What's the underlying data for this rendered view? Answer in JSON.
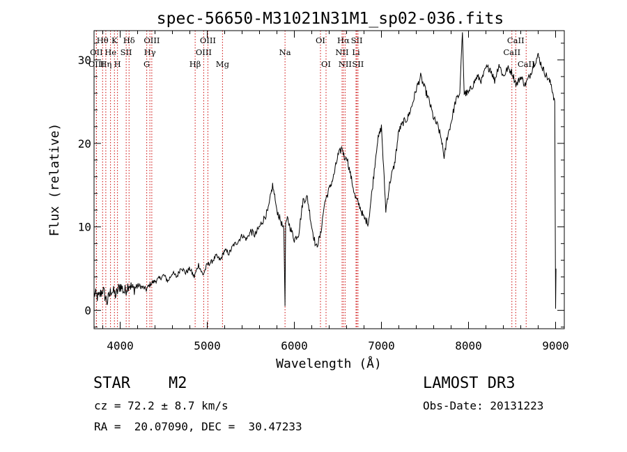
{
  "chart_data": {
    "type": "line",
    "title": "spec-56650-M31021N31M1_sp02-036.fits",
    "xlabel": "Wavelength (Å)",
    "ylabel": "Flux (relative)",
    "xlim": [
      3700,
      9100
    ],
    "ylim": [
      -2.2,
      33.5
    ],
    "xticks": [
      4000,
      5000,
      6000,
      7000,
      8000,
      9000
    ],
    "yticks": [
      0,
      10,
      20,
      30
    ],
    "line_color": "#000000",
    "marker_color": "#cc0000",
    "series": [
      {
        "name": "spectrum",
        "x": [
          3700,
          3750,
          3800,
          3850,
          3900,
          3950,
          4000,
          4050,
          4100,
          4150,
          4200,
          4250,
          4300,
          4350,
          4400,
          4450,
          4500,
          4550,
          4600,
          4650,
          4700,
          4750,
          4800,
          4850,
          4900,
          4950,
          5000,
          5050,
          5100,
          5150,
          5200,
          5250,
          5300,
          5350,
          5400,
          5450,
          5500,
          5550,
          5600,
          5650,
          5700,
          5750,
          5780,
          5800,
          5850,
          5880,
          5893,
          5900,
          5920,
          5950,
          6000,
          6050,
          6100,
          6150,
          6200,
          6250,
          6300,
          6330,
          6350,
          6400,
          6450,
          6500,
          6550,
          6580,
          6600,
          6650,
          6700,
          6750,
          6800,
          6850,
          6900,
          6950,
          7000,
          7050,
          7100,
          7150,
          7200,
          7250,
          7300,
          7350,
          7400,
          7450,
          7500,
          7550,
          7600,
          7650,
          7700,
          7720,
          7750,
          7800,
          7850,
          7900,
          7915,
          7930,
          7950,
          8000,
          8050,
          8100,
          8150,
          8200,
          8250,
          8300,
          8350,
          8400,
          8450,
          8500,
          8550,
          8600,
          8650,
          8700,
          8750,
          8800,
          8850,
          8900,
          8950,
          8990,
          9000,
          9005
        ],
        "y": [
          2,
          1.5,
          2.5,
          1,
          2.5,
          1.8,
          3,
          2.2,
          3.2,
          2.5,
          3,
          2.8,
          2.5,
          3.2,
          3.5,
          3.8,
          4.2,
          3.5,
          4.5,
          4,
          5.2,
          4.5,
          5,
          4,
          5.5,
          4.2,
          5.5,
          5.8,
          6.5,
          6,
          7.2,
          6.8,
          7.8,
          8.2,
          9,
          8.5,
          9.5,
          9,
          10,
          11,
          12,
          15,
          13.2,
          12,
          10.5,
          9.5,
          0.5,
          10.5,
          11,
          10,
          8.5,
          9.2,
          13.2,
          13.5,
          10,
          7.5,
          9,
          11.5,
          13,
          14.5,
          16,
          18.5,
          19.5,
          18,
          18.5,
          16,
          13.5,
          12.5,
          11,
          10.5,
          15,
          20,
          22,
          12,
          15.5,
          17.5,
          21.5,
          22.5,
          23,
          24.5,
          26.5,
          28,
          26.5,
          25,
          23,
          22,
          20,
          18,
          20.5,
          22.5,
          25,
          26,
          30,
          33.3,
          26,
          26,
          27,
          28,
          27.5,
          29,
          29,
          27.5,
          29.5,
          28,
          29,
          28.5,
          27,
          28,
          27,
          28,
          29.5,
          30.5,
          29,
          28,
          27,
          25,
          0.2,
          5
        ]
      }
    ],
    "line_markers": [
      {
        "label": "Hθ",
        "x": 3798,
        "row": 1
      },
      {
        "label": "OII",
        "x": 3727,
        "row": 2
      },
      {
        "label": "OIII",
        "x": 3727,
        "row": 3
      },
      {
        "label": "He",
        "x": 3889,
        "row": 2
      },
      {
        "label": "Hη",
        "x": 3835,
        "row": 3
      },
      {
        "label": "K",
        "x": 3934,
        "row": 1
      },
      {
        "label": "H",
        "x": 3969,
        "row": 3
      },
      {
        "label": "SII",
        "x": 4069,
        "row": 2
      },
      {
        "label": "Hδ",
        "x": 4102,
        "row": 1
      },
      {
        "label": "OIII",
        "x": 4363,
        "row": 1
      },
      {
        "label": "Hγ",
        "x": 4341,
        "row": 2
      },
      {
        "label": "G",
        "x": 4305,
        "row": 3
      },
      {
        "label": "Hβ",
        "x": 4861,
        "row": 3
      },
      {
        "label": "OIII",
        "x": 4959,
        "row": 2
      },
      {
        "label": "OIII",
        "x": 5007,
        "row": 1
      },
      {
        "label": "Mg",
        "x": 5175,
        "row": 3
      },
      {
        "label": "Na",
        "x": 5893,
        "row": 2
      },
      {
        "label": "OI",
        "x": 6300,
        "row": 1
      },
      {
        "label": "OI",
        "x": 6364,
        "row": 3
      },
      {
        "label": "Hα",
        "x": 6563,
        "row": 1
      },
      {
        "label": "NII",
        "x": 6548,
        "row": 2
      },
      {
        "label": "NII",
        "x": 6583,
        "row": 3
      },
      {
        "label": "SII",
        "x": 6717,
        "row": 1
      },
      {
        "label": "Li",
        "x": 6708,
        "row": 2
      },
      {
        "label": "SII",
        "x": 6731,
        "row": 3
      },
      {
        "label": "CaII",
        "x": 8542,
        "row": 1
      },
      {
        "label": "CaII",
        "x": 8498,
        "row": 2
      },
      {
        "label": "CaII",
        "x": 8662,
        "row": 3
      }
    ]
  },
  "info": {
    "object_class": "STAR",
    "subclass": "M2",
    "survey": "LAMOST DR3",
    "cz": "cz = 72.2 ± 8.7 km/s",
    "obs_date": "Obs-Date: 20131223",
    "coords": "RA =  20.07090, DEC =  30.47233"
  }
}
